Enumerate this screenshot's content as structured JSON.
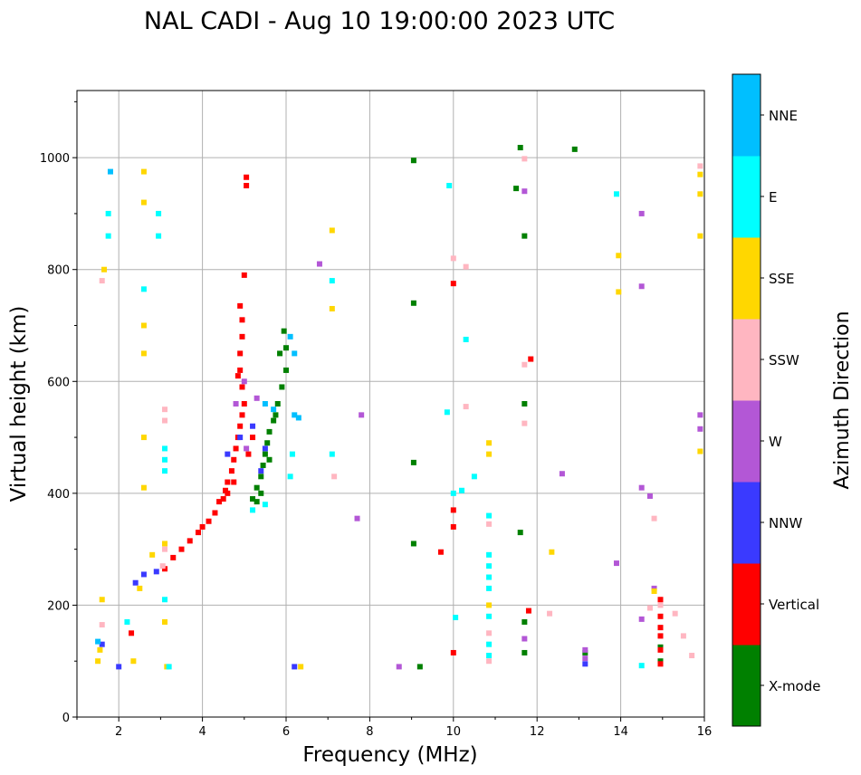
{
  "chart_data": {
    "type": "scatter",
    "title": "NAL CADI - Aug 10 19:00:00 2023 UTC",
    "xlabel": "Frequency (MHz)",
    "ylabel": "Virtual height (km)",
    "xlim": [
      1,
      16
    ],
    "ylim": [
      0,
      1120
    ],
    "xticks": [
      2,
      4,
      6,
      8,
      10,
      12,
      14,
      16
    ],
    "yticks": [
      0,
      200,
      400,
      600,
      800,
      1000
    ],
    "grid": true,
    "colorbar": {
      "title": "Azimuth Direction",
      "categories": [
        {
          "name": "X-mode",
          "color": "#008000"
        },
        {
          "name": "Vertical",
          "color": "#ff0000"
        },
        {
          "name": "NNW",
          "color": "#3a3aff"
        },
        {
          "name": "W",
          "color": "#b357d6"
        },
        {
          "name": "SSW",
          "color": "#ffb6c1"
        },
        {
          "name": "SSE",
          "color": "#ffd700"
        },
        {
          "name": "E",
          "color": "#00ffff"
        },
        {
          "name": "NNE",
          "color": "#00bfff"
        }
      ]
    },
    "series": [
      {
        "name": "X-mode",
        "points": [
          [
            5.2,
            390
          ],
          [
            5.3,
            410
          ],
          [
            5.4,
            430
          ],
          [
            5.45,
            450
          ],
          [
            5.5,
            470
          ],
          [
            5.55,
            490
          ],
          [
            5.6,
            510
          ],
          [
            5.7,
            530
          ],
          [
            5.8,
            560
          ],
          [
            5.9,
            590
          ],
          [
            6.0,
            620
          ],
          [
            6.0,
            660
          ],
          [
            5.85,
            650
          ],
          [
            5.4,
            400
          ],
          [
            5.3,
            385
          ],
          [
            5.6,
            460
          ],
          [
            5.75,
            540
          ],
          [
            5.95,
            690
          ],
          [
            9.05,
            995
          ],
          [
            9.05,
            740
          ],
          [
            9.05,
            310
          ],
          [
            9.05,
            455
          ],
          [
            11.7,
            860
          ],
          [
            11.7,
            560
          ],
          [
            11.6,
            330
          ],
          [
            11.7,
            170
          ],
          [
            11.7,
            115
          ],
          [
            12.9,
            1015
          ],
          [
            13.15,
            115
          ],
          [
            14.95,
            125
          ],
          [
            14.95,
            100
          ],
          [
            9.2,
            90
          ],
          [
            11.5,
            945
          ],
          [
            11.6,
            1018
          ]
        ]
      },
      {
        "name": "Vertical",
        "points": [
          [
            3.1,
            265
          ],
          [
            3.3,
            285
          ],
          [
            3.5,
            300
          ],
          [
            3.7,
            315
          ],
          [
            3.9,
            330
          ],
          [
            4.0,
            340
          ],
          [
            4.15,
            350
          ],
          [
            4.3,
            365
          ],
          [
            4.4,
            385
          ],
          [
            4.55,
            405
          ],
          [
            4.6,
            420
          ],
          [
            4.7,
            440
          ],
          [
            4.75,
            460
          ],
          [
            4.8,
            480
          ],
          [
            4.85,
            500
          ],
          [
            4.9,
            520
          ],
          [
            4.95,
            540
          ],
          [
            5.0,
            560
          ],
          [
            4.95,
            590
          ],
          [
            4.9,
            620
          ],
          [
            4.9,
            650
          ],
          [
            4.95,
            680
          ],
          [
            4.95,
            710
          ],
          [
            4.9,
            735
          ],
          [
            5.0,
            790
          ],
          [
            5.05,
            965
          ],
          [
            5.05,
            950
          ],
          [
            4.6,
            400
          ],
          [
            4.75,
            420
          ],
          [
            4.5,
            390
          ],
          [
            5.1,
            470
          ],
          [
            5.2,
            500
          ],
          [
            4.85,
            610
          ],
          [
            10.0,
            775
          ],
          [
            10.0,
            370
          ],
          [
            10.0,
            340
          ],
          [
            9.7,
            295
          ],
          [
            10.0,
            115
          ],
          [
            11.85,
            640
          ],
          [
            11.8,
            190
          ],
          [
            14.95,
            210
          ],
          [
            14.95,
            180
          ],
          [
            14.95,
            160
          ],
          [
            14.95,
            145
          ],
          [
            14.95,
            120
          ],
          [
            14.95,
            95
          ],
          [
            2.3,
            150
          ]
        ]
      },
      {
        "name": "NNW",
        "points": [
          [
            2.4,
            240
          ],
          [
            2.6,
            255
          ],
          [
            2.9,
            260
          ],
          [
            4.9,
            500
          ],
          [
            5.2,
            520
          ],
          [
            5.5,
            480
          ],
          [
            4.6,
            470
          ],
          [
            5.4,
            440
          ],
          [
            6.2,
            90
          ],
          [
            13.15,
            95
          ],
          [
            2.0,
            90
          ],
          [
            1.6,
            130
          ]
        ]
      },
      {
        "name": "W",
        "points": [
          [
            6.8,
            810
          ],
          [
            4.8,
            560
          ],
          [
            5.0,
            600
          ],
          [
            5.3,
            570
          ],
          [
            5.05,
            480
          ],
          [
            8.7,
            90
          ],
          [
            13.15,
            120
          ],
          [
            13.15,
            105
          ],
          [
            14.5,
            900
          ],
          [
            14.5,
            770
          ],
          [
            14.5,
            410
          ],
          [
            14.7,
            395
          ],
          [
            14.5,
            175
          ],
          [
            14.8,
            230
          ],
          [
            15.9,
            540
          ],
          [
            15.9,
            515
          ],
          [
            11.7,
            940
          ],
          [
            11.7,
            140
          ],
          [
            12.6,
            435
          ],
          [
            13.9,
            275
          ],
          [
            7.7,
            355
          ],
          [
            7.8,
            540
          ]
        ]
      },
      {
        "name": "SSW",
        "points": [
          [
            3.1,
            550
          ],
          [
            3.1,
            530
          ],
          [
            3.1,
            300
          ],
          [
            3.05,
            270
          ],
          [
            10.85,
            150
          ],
          [
            10.85,
            100
          ],
          [
            10.85,
            345
          ],
          [
            14.95,
            200
          ],
          [
            15.3,
            185
          ],
          [
            15.5,
            145
          ],
          [
            15.7,
            110
          ],
          [
            15.9,
            985
          ],
          [
            14.7,
            195
          ],
          [
            14.8,
            355
          ],
          [
            11.7,
            525
          ],
          [
            11.7,
            998
          ],
          [
            12.3,
            185
          ],
          [
            10.3,
            555
          ],
          [
            10.3,
            805
          ],
          [
            7.15,
            430
          ],
          [
            1.6,
            165
          ],
          [
            1.6,
            780
          ],
          [
            11.7,
            630
          ],
          [
            10.0,
            820
          ]
        ]
      },
      {
        "name": "SSE",
        "points": [
          [
            1.5,
            100
          ],
          [
            1.55,
            120
          ],
          [
            1.6,
            210
          ],
          [
            1.65,
            800
          ],
          [
            2.6,
            975
          ],
          [
            2.6,
            920
          ],
          [
            2.6,
            700
          ],
          [
            2.6,
            650
          ],
          [
            2.6,
            500
          ],
          [
            2.6,
            410
          ],
          [
            3.1,
            310
          ],
          [
            3.1,
            170
          ],
          [
            3.15,
            90
          ],
          [
            2.35,
            100
          ],
          [
            2.5,
            230
          ],
          [
            2.8,
            290
          ],
          [
            7.1,
            870
          ],
          [
            7.1,
            730
          ],
          [
            10.85,
            490
          ],
          [
            10.85,
            470
          ],
          [
            10.85,
            200
          ],
          [
            12.35,
            295
          ],
          [
            13.95,
            825
          ],
          [
            13.95,
            760
          ],
          [
            14.8,
            225
          ],
          [
            15.9,
            970
          ],
          [
            15.9,
            935
          ],
          [
            15.9,
            860
          ],
          [
            15.9,
            475
          ],
          [
            6.35,
            90
          ]
        ]
      },
      {
        "name": "E",
        "points": [
          [
            3.1,
            480
          ],
          [
            3.1,
            460
          ],
          [
            3.1,
            440
          ],
          [
            3.1,
            210
          ],
          [
            3.2,
            90
          ],
          [
            2.95,
            900
          ],
          [
            2.95,
            860
          ],
          [
            1.75,
            900
          ],
          [
            1.75,
            860
          ],
          [
            2.2,
            170
          ],
          [
            5.2,
            370
          ],
          [
            5.5,
            380
          ],
          [
            6.1,
            430
          ],
          [
            6.15,
            470
          ],
          [
            7.1,
            470
          ],
          [
            7.1,
            780
          ],
          [
            9.85,
            545
          ],
          [
            9.9,
            950
          ],
          [
            10.85,
            360
          ],
          [
            10.85,
            290
          ],
          [
            10.85,
            270
          ],
          [
            10.85,
            250
          ],
          [
            10.85,
            230
          ],
          [
            10.85,
            180
          ],
          [
            10.85,
            130
          ],
          [
            10.85,
            110
          ],
          [
            10.0,
            400
          ],
          [
            10.2,
            405
          ],
          [
            10.5,
            430
          ],
          [
            10.05,
            178
          ],
          [
            10.3,
            675
          ],
          [
            13.9,
            935
          ],
          [
            14.5,
            92
          ],
          [
            2.6,
            765
          ]
        ]
      },
      {
        "name": "NNE",
        "points": [
          [
            1.8,
            975
          ],
          [
            6.2,
            540
          ],
          [
            6.2,
            650
          ],
          [
            6.1,
            680
          ],
          [
            5.7,
            550
          ],
          [
            5.5,
            560
          ],
          [
            1.5,
            135
          ],
          [
            6.3,
            535
          ]
        ]
      }
    ]
  }
}
